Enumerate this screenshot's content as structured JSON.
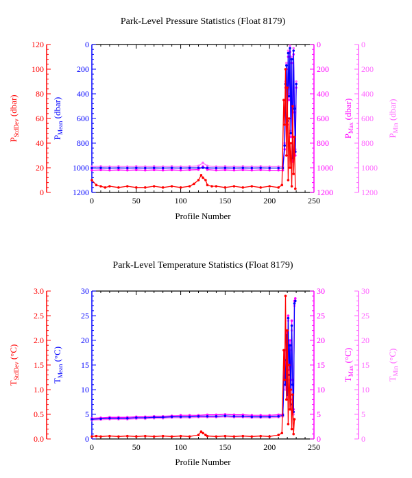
{
  "colors": {
    "stddev": "#ff0000",
    "mean": "#0000ff",
    "max": "#ff00ff",
    "min": "#ff66ff",
    "axis": "#000000"
  },
  "chart_data": [
    {
      "type": "line",
      "title": "Park-Level Pressure Statistics (Float 8179)",
      "xlabel": "Profile Number",
      "xlim": [
        0,
        250
      ],
      "x_ticks": [
        "0",
        "50",
        "100",
        "150",
        "200",
        "250"
      ],
      "axes": {
        "stddev": {
          "label_main": "P",
          "label_sub": "StdDev",
          "label_unit": " (dbar)",
          "lim": [
            0,
            120
          ],
          "inverted": false,
          "ticks": [
            "0",
            "20",
            "40",
            "60",
            "80",
            "100",
            "120"
          ]
        },
        "mean": {
          "label_main": "P",
          "label_sub": "Mean",
          "label_unit": " (dbar)",
          "lim": [
            0,
            1200
          ],
          "inverted": true,
          "ticks": [
            "0",
            "200",
            "400",
            "600",
            "800",
            "1000",
            "1200"
          ]
        },
        "max": {
          "label_main": "P",
          "label_sub": "Max",
          "label_unit": " (dbar)",
          "lim": [
            0,
            1200
          ],
          "inverted": true,
          "ticks": [
            "0",
            "200",
            "400",
            "600",
            "800",
            "1000",
            "1200"
          ]
        },
        "min": {
          "label_main": "P",
          "label_sub": "Min",
          "label_unit": " (dbar)",
          "lim": [
            0,
            1200
          ],
          "inverted": true,
          "ticks": [
            "0",
            "200",
            "400",
            "600",
            "800",
            "1000",
            "1200"
          ]
        }
      },
      "series": [
        {
          "key": "min",
          "axis": "min",
          "x": [
            0,
            10,
            20,
            30,
            40,
            50,
            60,
            70,
            80,
            90,
            100,
            110,
            120,
            125,
            130,
            140,
            150,
            160,
            170,
            180,
            190,
            200,
            210,
            215,
            217,
            218,
            219,
            220,
            221,
            222,
            223,
            224,
            225,
            226,
            227,
            228,
            229,
            230
          ],
          "y": [
            990,
            988,
            990,
            988,
            990,
            988,
            990,
            988,
            990,
            988,
            990,
            988,
            985,
            960,
            985,
            990,
            988,
            990,
            988,
            990,
            988,
            990,
            990,
            990,
            800,
            300,
            150,
            600,
            50,
            400,
            10,
            700,
            100,
            900,
            30,
            500,
            850,
            300
          ]
        },
        {
          "key": "max",
          "axis": "max",
          "x": [
            0,
            10,
            20,
            30,
            40,
            50,
            60,
            70,
            80,
            90,
            100,
            110,
            120,
            125,
            130,
            140,
            150,
            160,
            170,
            180,
            190,
            200,
            210,
            215,
            217,
            218,
            219,
            220,
            221,
            222,
            223,
            224,
            225,
            226,
            227,
            228,
            229,
            230
          ],
          "y": [
            1020,
            1018,
            1020,
            1018,
            1020,
            1018,
            1020,
            1018,
            1020,
            1018,
            1020,
            1018,
            1015,
            990,
            1015,
            1020,
            1018,
            1020,
            1018,
            1020,
            1018,
            1020,
            1020,
            1020,
            850,
            350,
            200,
            650,
            100,
            450,
            60,
            750,
            150,
            950,
            80,
            550,
            900,
            350
          ]
        },
        {
          "key": "mean",
          "axis": "mean",
          "x": [
            0,
            10,
            20,
            30,
            40,
            50,
            60,
            70,
            80,
            90,
            100,
            110,
            120,
            125,
            130,
            140,
            150,
            160,
            170,
            180,
            190,
            200,
            210,
            215,
            217,
            218,
            219,
            220,
            221,
            222,
            223,
            224,
            225,
            226,
            227,
            228,
            229,
            230
          ],
          "y": [
            1002,
            1001,
            1002,
            1001,
            1002,
            1001,
            1002,
            1001,
            1002,
            1001,
            1002,
            1001,
            1001,
            1000,
            1001,
            1002,
            1001,
            1002,
            1001,
            1002,
            1001,
            1002,
            1002,
            1002,
            820,
            320,
            170,
            620,
            70,
            420,
            30,
            720,
            120,
            920,
            50,
            520,
            870,
            320
          ]
        },
        {
          "key": "stddev",
          "axis": "stddev",
          "x": [
            0,
            5,
            10,
            15,
            20,
            30,
            40,
            50,
            60,
            70,
            80,
            90,
            100,
            110,
            115,
            120,
            123,
            125,
            128,
            130,
            135,
            140,
            150,
            160,
            170,
            180,
            190,
            200,
            210,
            214,
            216,
            217,
            218,
            219,
            220,
            221,
            222,
            223,
            224,
            225,
            226,
            227,
            228,
            229
          ],
          "y": [
            10,
            6,
            5,
            4,
            5,
            4,
            5,
            4,
            4,
            5,
            4,
            5,
            4,
            5,
            7,
            10,
            14,
            12,
            10,
            6,
            5,
            5,
            4,
            5,
            4,
            5,
            4,
            5,
            4,
            6,
            75,
            55,
            100,
            30,
            85,
            10,
            60,
            20,
            40,
            5,
            70,
            15,
            45,
            3
          ]
        }
      ]
    },
    {
      "type": "line",
      "title": "Park-Level Temperature Statistics (Float 8179)",
      "xlabel": "Profile Number",
      "xlim": [
        0,
        250
      ],
      "x_ticks": [
        "0",
        "50",
        "100",
        "150",
        "200",
        "250"
      ],
      "axes": {
        "stddev": {
          "label_main": "T",
          "label_sub": "StdDev",
          "label_unit": " (°C)",
          "lim": [
            0,
            3
          ],
          "inverted": false,
          "ticks": [
            "0.0",
            "0.5",
            "1.0",
            "1.5",
            "2.0",
            "2.5",
            "3.0"
          ]
        },
        "mean": {
          "label_main": "T",
          "label_sub": "Mean",
          "label_unit": " (°C)",
          "lim": [
            0,
            30
          ],
          "inverted": false,
          "ticks": [
            "0",
            "5",
            "10",
            "15",
            "20",
            "25",
            "30"
          ]
        },
        "max": {
          "label_main": "T",
          "label_sub": "Max",
          "label_unit": " (°C)",
          "lim": [
            0,
            30
          ],
          "inverted": false,
          "ticks": [
            "0",
            "5",
            "10",
            "15",
            "20",
            "25",
            "30"
          ]
        },
        "min": {
          "label_main": "T",
          "label_sub": "Min",
          "label_unit": " (°C)",
          "lim": [
            0,
            30
          ],
          "inverted": false,
          "ticks": [
            "0",
            "5",
            "10",
            "15",
            "20",
            "25",
            "30"
          ]
        }
      },
      "series": [
        {
          "key": "min",
          "axis": "min",
          "x": [
            0,
            10,
            20,
            30,
            40,
            50,
            60,
            70,
            80,
            90,
            100,
            110,
            120,
            130,
            140,
            150,
            160,
            170,
            180,
            190,
            200,
            210,
            215,
            217,
            218,
            219,
            220,
            221,
            222,
            223,
            224,
            225,
            226,
            227,
            228,
            229
          ],
          "y": [
            3.8,
            3.9,
            4.0,
            4.0,
            4.0,
            4.1,
            4.1,
            4.2,
            4.2,
            4.3,
            4.3,
            4.3,
            4.4,
            4.4,
            4.4,
            4.5,
            4.4,
            4.4,
            4.3,
            4.3,
            4.3,
            4.4,
            4.6,
            15,
            10,
            20,
            8,
            24,
            12,
            18,
            6,
            22,
            10,
            5,
            27,
            28
          ]
        },
        {
          "key": "max",
          "axis": "max",
          "x": [
            0,
            10,
            20,
            30,
            40,
            50,
            60,
            70,
            80,
            90,
            100,
            110,
            120,
            130,
            140,
            150,
            160,
            170,
            180,
            190,
            200,
            210,
            215,
            217,
            218,
            219,
            220,
            221,
            222,
            223,
            224,
            225,
            226,
            227,
            228,
            229
          ],
          "y": [
            4.2,
            4.3,
            4.4,
            4.4,
            4.4,
            4.5,
            4.5,
            4.6,
            4.6,
            4.7,
            4.8,
            4.8,
            4.8,
            4.9,
            4.9,
            5.0,
            4.9,
            4.9,
            4.8,
            4.8,
            4.8,
            4.9,
            5.0,
            18,
            12,
            22,
            10,
            25,
            14,
            20,
            8,
            24,
            12,
            6,
            28,
            28.5
          ]
        },
        {
          "key": "mean",
          "axis": "mean",
          "x": [
            0,
            10,
            20,
            30,
            40,
            50,
            60,
            70,
            80,
            90,
            100,
            110,
            120,
            130,
            140,
            150,
            160,
            170,
            180,
            190,
            200,
            210,
            215,
            217,
            218,
            219,
            220,
            221,
            222,
            223,
            224,
            225,
            226,
            227,
            228,
            229
          ],
          "y": [
            4.0,
            4.1,
            4.2,
            4.2,
            4.2,
            4.3,
            4.3,
            4.4,
            4.4,
            4.5,
            4.5,
            4.5,
            4.6,
            4.6,
            4.6,
            4.7,
            4.6,
            4.6,
            4.5,
            4.5,
            4.5,
            4.6,
            4.8,
            16,
            11,
            21,
            9,
            24.5,
            13,
            19,
            7,
            23,
            11,
            5.5,
            27.5,
            28
          ]
        },
        {
          "key": "stddev",
          "axis": "stddev",
          "x": [
            0,
            5,
            10,
            20,
            30,
            40,
            50,
            60,
            70,
            80,
            90,
            100,
            110,
            120,
            123,
            125,
            128,
            130,
            140,
            150,
            160,
            170,
            180,
            190,
            200,
            210,
            214,
            216,
            217,
            218,
            219,
            220,
            221,
            222,
            223,
            224,
            225,
            226,
            227,
            228
          ],
          "y": [
            0.05,
            0.06,
            0.05,
            0.06,
            0.05,
            0.06,
            0.05,
            0.06,
            0.05,
            0.06,
            0.05,
            0.06,
            0.05,
            0.08,
            0.15,
            0.12,
            0.08,
            0.06,
            0.05,
            0.06,
            0.05,
            0.06,
            0.05,
            0.06,
            0.05,
            0.08,
            0.12,
            1.8,
            1.2,
            2.9,
            0.8,
            2.2,
            0.3,
            1.5,
            0.6,
            1.0,
            0.2,
            0.9,
            0.1,
            0.4
          ]
        }
      ]
    }
  ]
}
